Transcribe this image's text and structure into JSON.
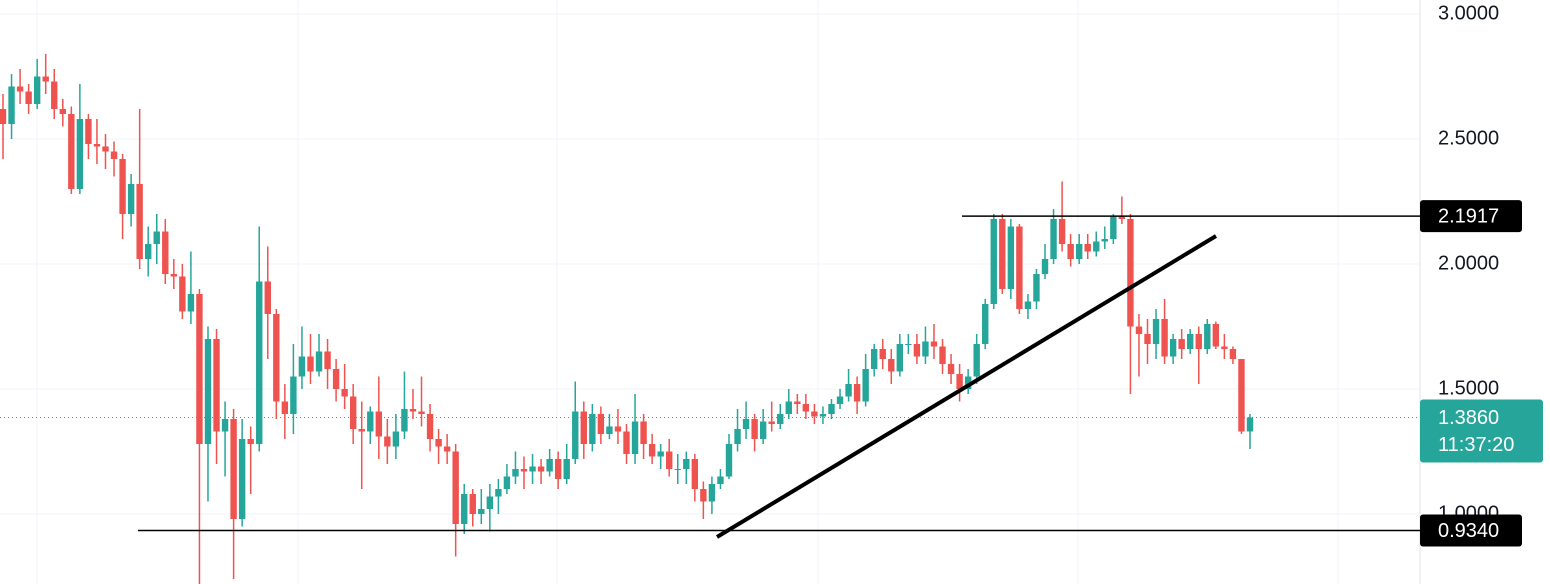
{
  "chart_data": {
    "type": "candlestick",
    "ylim": [
      0.72,
      3.056
    ],
    "yticks": [
      {
        "value": 3,
        "label": "3.0000"
      },
      {
        "value": 2.5,
        "label": "2.5000"
      },
      {
        "value": 2,
        "label": "2.0000"
      },
      {
        "value": 1.5,
        "label": "1.5000"
      },
      {
        "value": 1,
        "label": "1.0000"
      }
    ],
    "grid": true,
    "up_color": "#26a69a",
    "down_color": "#ef5350",
    "levels": [
      {
        "value": 2.1917,
        "label": "2.1917"
      },
      {
        "value": 0.934,
        "label": "0.9340"
      }
    ],
    "last_price": {
      "value": 1.386,
      "label": "1.3860"
    },
    "countdown": "11:37:20",
    "candles": [
      [
        2.62,
        2.68,
        2.42,
        2.56
      ],
      [
        2.56,
        2.76,
        2.5,
        2.71
      ],
      [
        2.71,
        2.78,
        2.64,
        2.69
      ],
      [
        2.69,
        2.72,
        2.6,
        2.64
      ],
      [
        2.64,
        2.82,
        2.62,
        2.75
      ],
      [
        2.75,
        2.84,
        2.68,
        2.73
      ],
      [
        2.73,
        2.78,
        2.58,
        2.62
      ],
      [
        2.62,
        2.66,
        2.55,
        2.6
      ],
      [
        2.6,
        2.63,
        2.28,
        2.3
      ],
      [
        2.3,
        2.72,
        2.28,
        2.58
      ],
      [
        2.58,
        2.6,
        2.42,
        2.48
      ],
      [
        2.48,
        2.58,
        2.4,
        2.47
      ],
      [
        2.47,
        2.52,
        2.38,
        2.45
      ],
      [
        2.45,
        2.49,
        2.35,
        2.42
      ],
      [
        2.42,
        2.44,
        2.1,
        2.2
      ],
      [
        2.2,
        2.36,
        2.15,
        2.32
      ],
      [
        2.32,
        2.62,
        1.98,
        2.02
      ],
      [
        2.02,
        2.15,
        1.95,
        2.08
      ],
      [
        2.08,
        2.2,
        2.0,
        2.13
      ],
      [
        2.13,
        2.18,
        1.92,
        1.96
      ],
      [
        1.96,
        2.02,
        1.9,
        1.95
      ],
      [
        1.95,
        2.0,
        1.78,
        1.81
      ],
      [
        1.81,
        2.05,
        1.76,
        1.88
      ],
      [
        1.88,
        1.9,
        0.72,
        1.28
      ],
      [
        1.28,
        1.75,
        1.05,
        1.7
      ],
      [
        1.7,
        1.74,
        1.2,
        1.33
      ],
      [
        1.33,
        1.45,
        1.15,
        1.38
      ],
      [
        1.38,
        1.42,
        0.74,
        0.98
      ],
      [
        0.98,
        1.38,
        0.95,
        1.3
      ],
      [
        1.3,
        1.35,
        1.08,
        1.28
      ],
      [
        1.28,
        2.15,
        1.25,
        1.93
      ],
      [
        1.93,
        2.07,
        1.62,
        1.8
      ],
      [
        1.8,
        1.82,
        1.38,
        1.45
      ],
      [
        1.45,
        1.52,
        1.3,
        1.4
      ],
      [
        1.4,
        1.68,
        1.32,
        1.55
      ],
      [
        1.55,
        1.75,
        1.5,
        1.63
      ],
      [
        1.63,
        1.72,
        1.52,
        1.57
      ],
      [
        1.57,
        1.72,
        1.55,
        1.65
      ],
      [
        1.65,
        1.7,
        1.5,
        1.58
      ],
      [
        1.58,
        1.62,
        1.45,
        1.5
      ],
      [
        1.5,
        1.6,
        1.42,
        1.47
      ],
      [
        1.47,
        1.52,
        1.28,
        1.34
      ],
      [
        1.34,
        1.45,
        1.1,
        1.33
      ],
      [
        1.33,
        1.43,
        1.28,
        1.41
      ],
      [
        1.41,
        1.55,
        1.22,
        1.31
      ],
      [
        1.31,
        1.38,
        1.2,
        1.27
      ],
      [
        1.27,
        1.4,
        1.22,
        1.33
      ],
      [
        1.33,
        1.57,
        1.3,
        1.42
      ],
      [
        1.42,
        1.5,
        1.38,
        1.41
      ],
      [
        1.41,
        1.55,
        1.35,
        1.4
      ],
      [
        1.4,
        1.44,
        1.25,
        1.3
      ],
      [
        1.3,
        1.34,
        1.2,
        1.27
      ],
      [
        1.27,
        1.32,
        1.2,
        1.25
      ],
      [
        1.25,
        1.28,
        0.83,
        0.96
      ],
      [
        0.96,
        1.12,
        0.92,
        1.08
      ],
      [
        1.08,
        1.1,
        0.95,
        1.0
      ],
      [
        1.0,
        1.1,
        0.96,
        1.02
      ],
      [
        1.02,
        1.12,
        0.93,
        1.07
      ],
      [
        1.07,
        1.14,
        1.0,
        1.1
      ],
      [
        1.1,
        1.2,
        1.08,
        1.15
      ],
      [
        1.15,
        1.25,
        1.12,
        1.18
      ],
      [
        1.18,
        1.23,
        1.1,
        1.17
      ],
      [
        1.17,
        1.24,
        1.12,
        1.19
      ],
      [
        1.19,
        1.22,
        1.12,
        1.17
      ],
      [
        1.17,
        1.26,
        1.15,
        1.22
      ],
      [
        1.22,
        1.25,
        1.1,
        1.14
      ],
      [
        1.14,
        1.28,
        1.12,
        1.22
      ],
      [
        1.22,
        1.53,
        1.2,
        1.41
      ],
      [
        1.41,
        1.45,
        1.22,
        1.28
      ],
      [
        1.28,
        1.44,
        1.25,
        1.4
      ],
      [
        1.4,
        1.43,
        1.28,
        1.32
      ],
      [
        1.32,
        1.4,
        1.3,
        1.35
      ],
      [
        1.35,
        1.42,
        1.28,
        1.33
      ],
      [
        1.33,
        1.36,
        1.2,
        1.24
      ],
      [
        1.24,
        1.48,
        1.2,
        1.37
      ],
      [
        1.37,
        1.4,
        1.22,
        1.28
      ],
      [
        1.28,
        1.32,
        1.2,
        1.23
      ],
      [
        1.23,
        1.28,
        1.18,
        1.25
      ],
      [
        1.25,
        1.3,
        1.15,
        1.18
      ],
      [
        1.18,
        1.24,
        1.12,
        1.18
      ],
      [
        1.18,
        1.25,
        1.12,
        1.22
      ],
      [
        1.22,
        1.24,
        1.05,
        1.1
      ],
      [
        1.1,
        1.13,
        0.98,
        1.05
      ],
      [
        1.05,
        1.15,
        1.0,
        1.12
      ],
      [
        1.12,
        1.18,
        1.1,
        1.15
      ],
      [
        1.15,
        1.32,
        1.14,
        1.28
      ],
      [
        1.28,
        1.42,
        1.25,
        1.34
      ],
      [
        1.34,
        1.45,
        1.3,
        1.38
      ],
      [
        1.38,
        1.4,
        1.25,
        1.3
      ],
      [
        1.3,
        1.42,
        1.28,
        1.37
      ],
      [
        1.37,
        1.45,
        1.33,
        1.36
      ],
      [
        1.36,
        1.44,
        1.34,
        1.4
      ],
      [
        1.4,
        1.5,
        1.38,
        1.45
      ],
      [
        1.45,
        1.48,
        1.4,
        1.44
      ],
      [
        1.44,
        1.48,
        1.38,
        1.41
      ],
      [
        1.41,
        1.44,
        1.36,
        1.39
      ],
      [
        1.39,
        1.43,
        1.36,
        1.4
      ],
      [
        1.4,
        1.46,
        1.38,
        1.44
      ],
      [
        1.44,
        1.5,
        1.42,
        1.47
      ],
      [
        1.47,
        1.58,
        1.45,
        1.52
      ],
      [
        1.52,
        1.55,
        1.4,
        1.45
      ],
      [
        1.45,
        1.64,
        1.43,
        1.58
      ],
      [
        1.58,
        1.68,
        1.55,
        1.66
      ],
      [
        1.66,
        1.7,
        1.58,
        1.62
      ],
      [
        1.62,
        1.66,
        1.52,
        1.57
      ],
      [
        1.57,
        1.72,
        1.55,
        1.68
      ],
      [
        1.68,
        1.72,
        1.64,
        1.68
      ],
      [
        1.68,
        1.72,
        1.6,
        1.63
      ],
      [
        1.63,
        1.75,
        1.6,
        1.69
      ],
      [
        1.69,
        1.76,
        1.62,
        1.67
      ],
      [
        1.67,
        1.7,
        1.56,
        1.6
      ],
      [
        1.6,
        1.64,
        1.52,
        1.56
      ],
      [
        1.56,
        1.6,
        1.45,
        1.5
      ],
      [
        1.5,
        1.58,
        1.48,
        1.55
      ],
      [
        1.55,
        1.72,
        1.52,
        1.68
      ],
      [
        1.68,
        1.86,
        1.66,
        1.84
      ],
      [
        1.84,
        2.2,
        1.82,
        2.18
      ],
      [
        2.18,
        2.2,
        1.88,
        1.9
      ],
      [
        1.9,
        2.18,
        1.86,
        2.15
      ],
      [
        2.15,
        2.16,
        1.8,
        1.82
      ],
      [
        1.82,
        1.88,
        1.78,
        1.85
      ],
      [
        1.85,
        1.98,
        1.82,
        1.96
      ],
      [
        1.96,
        2.08,
        1.94,
        2.02
      ],
      [
        2.02,
        2.22,
        2.0,
        2.18
      ],
      [
        2.18,
        2.33,
        2.05,
        2.08
      ],
      [
        2.08,
        2.12,
        1.99,
        2.02
      ],
      [
        2.02,
        2.12,
        2.0,
        2.08
      ],
      [
        2.08,
        2.12,
        2.02,
        2.05
      ],
      [
        2.05,
        2.13,
        2.03,
        2.09
      ],
      [
        2.09,
        2.15,
        2.06,
        2.1
      ],
      [
        2.1,
        2.2,
        2.08,
        2.19
      ],
      [
        2.19,
        2.27,
        2.16,
        2.18
      ],
      [
        2.18,
        2.2,
        1.48,
        1.75
      ],
      [
        1.75,
        1.8,
        1.55,
        1.72
      ],
      [
        1.72,
        1.78,
        1.6,
        1.68
      ],
      [
        1.68,
        1.82,
        1.62,
        1.78
      ],
      [
        1.78,
        1.86,
        1.6,
        1.63
      ],
      [
        1.63,
        1.72,
        1.6,
        1.7
      ],
      [
        1.7,
        1.74,
        1.62,
        1.66
      ],
      [
        1.66,
        1.74,
        1.64,
        1.72
      ],
      [
        1.72,
        1.75,
        1.52,
        1.66
      ],
      [
        1.66,
        1.78,
        1.64,
        1.76
      ],
      [
        1.76,
        1.77,
        1.66,
        1.67
      ],
      [
        1.67,
        1.72,
        1.62,
        1.66
      ],
      [
        1.66,
        1.67,
        1.6,
        1.62
      ],
      [
        1.62,
        1.62,
        1.32,
        1.33
      ],
      [
        1.33,
        1.4,
        1.26,
        1.386
      ]
    ]
  }
}
